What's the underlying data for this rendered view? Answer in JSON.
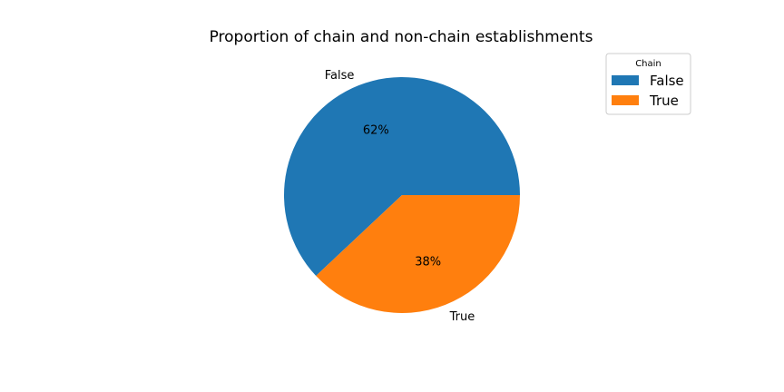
{
  "chart_data": {
    "type": "pie",
    "title": "Proportion of chain and non-chain establishments",
    "categories": [
      "False",
      "True"
    ],
    "values": [
      62,
      38
    ],
    "percent_labels": [
      "62%",
      "38%"
    ],
    "colors": [
      "#1f77b4",
      "#ff7f0e"
    ],
    "legend": {
      "title": "Chain",
      "placement": "top-right",
      "entries": [
        "False",
        "True"
      ]
    }
  }
}
